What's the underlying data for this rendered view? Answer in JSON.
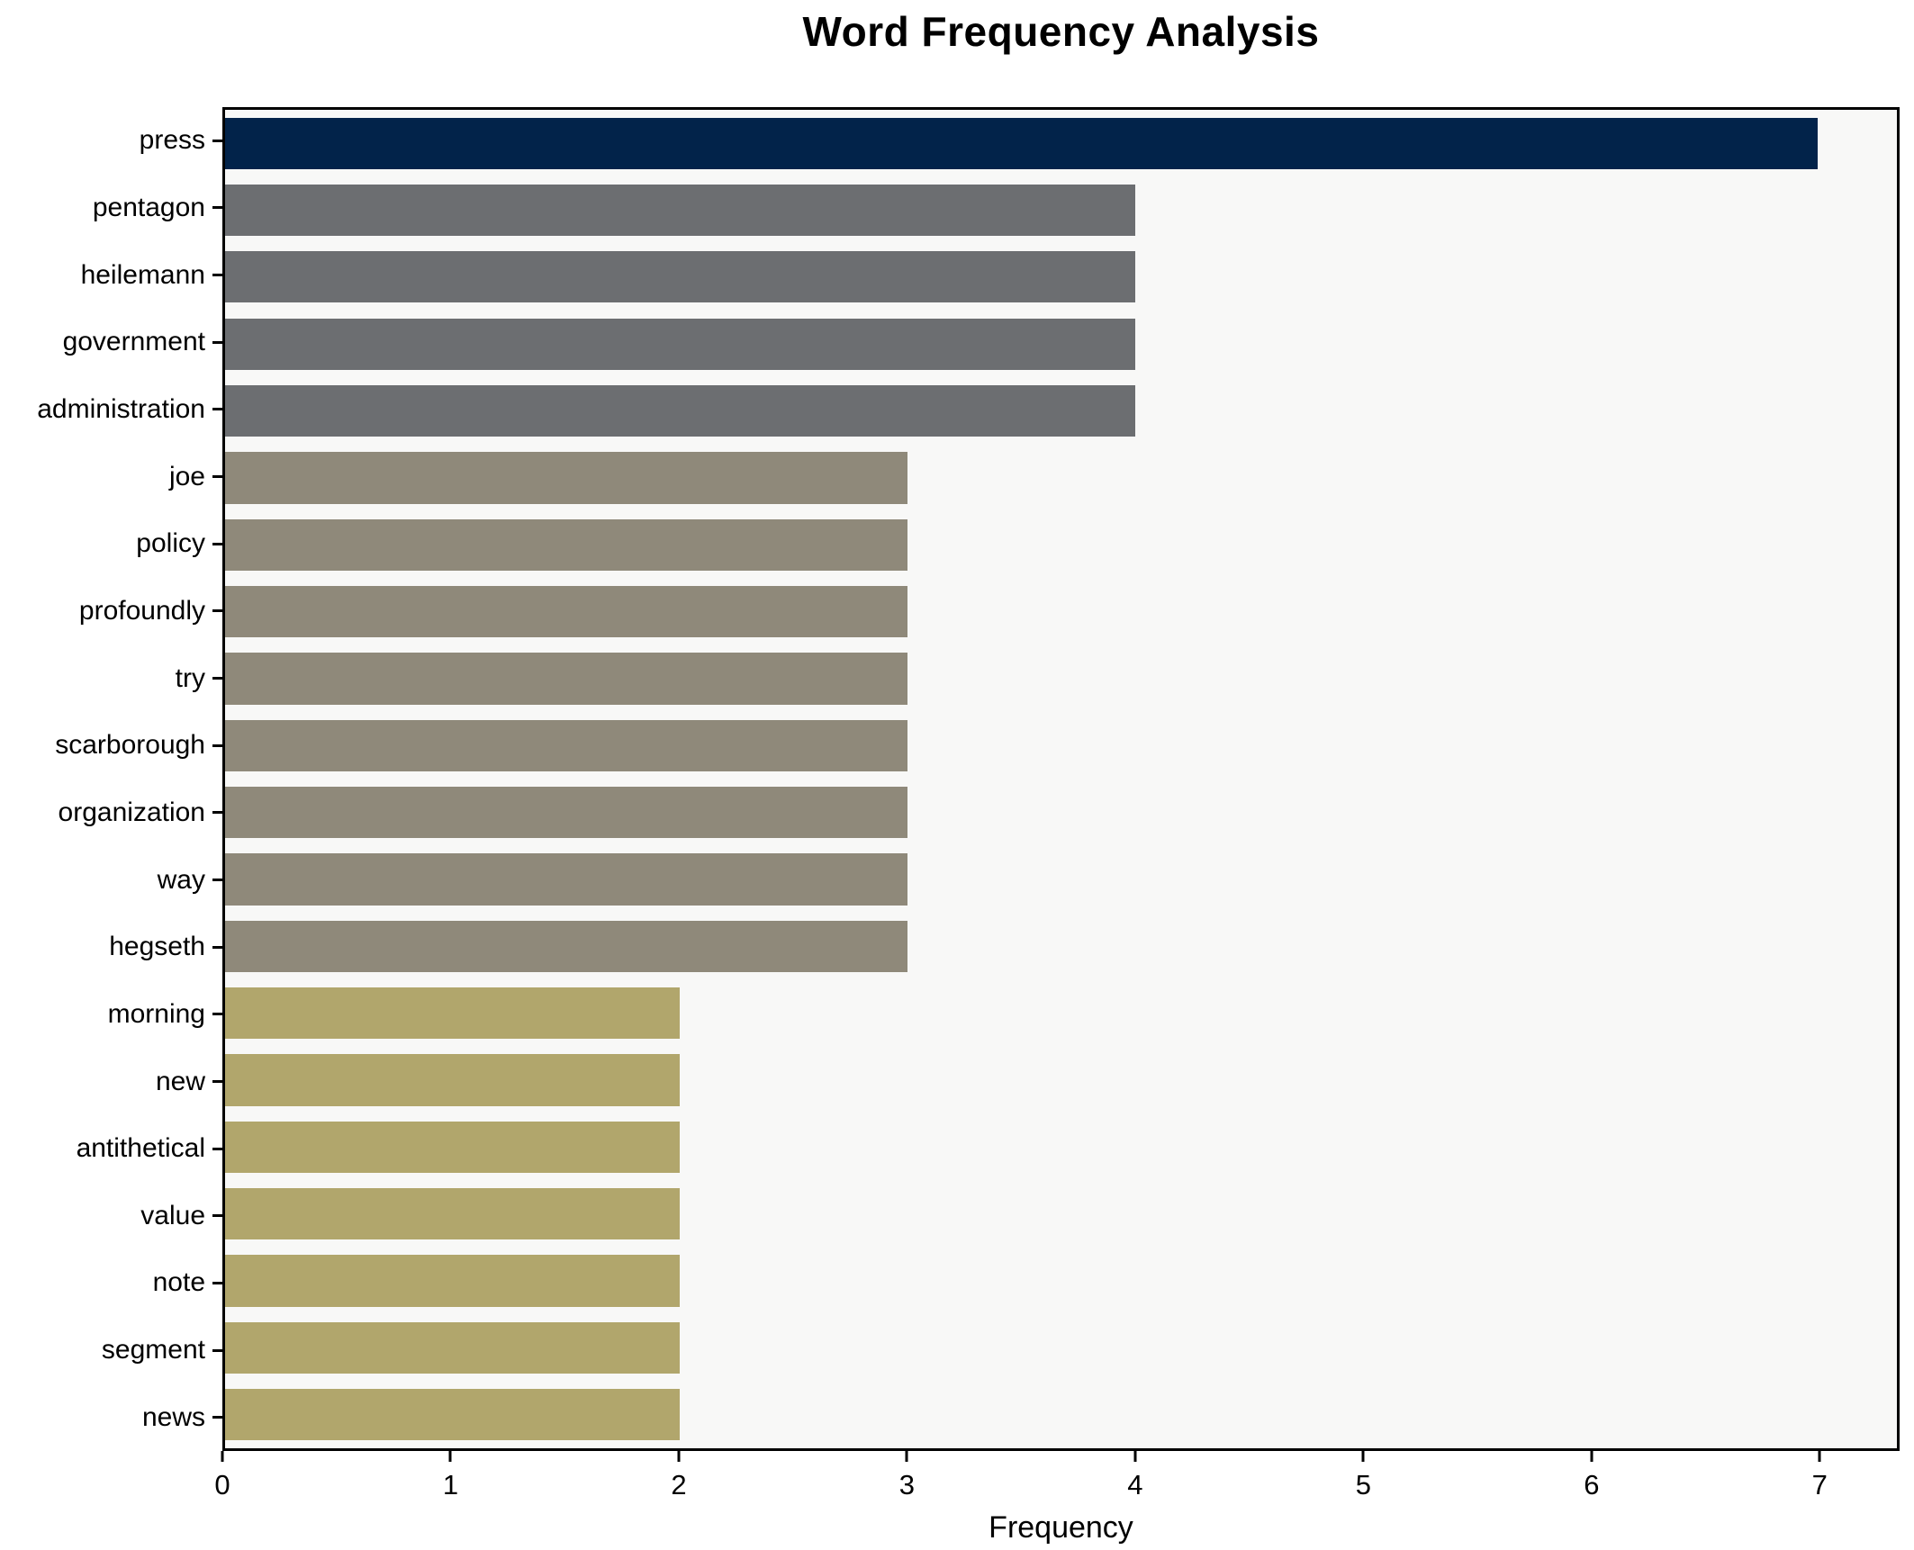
{
  "chart_data": {
    "type": "bar",
    "orientation": "horizontal",
    "title": "Word Frequency Analysis",
    "xlabel": "Frequency",
    "categories": [
      "press",
      "pentagon",
      "heilemann",
      "government",
      "administration",
      "joe",
      "policy",
      "profoundly",
      "try",
      "scarborough",
      "organization",
      "way",
      "hegseth",
      "morning",
      "new",
      "antithetical",
      "value",
      "note",
      "segment",
      "news"
    ],
    "values": [
      7,
      4,
      4,
      4,
      4,
      3,
      3,
      3,
      3,
      3,
      3,
      3,
      3,
      2,
      2,
      2,
      2,
      2,
      2,
      2
    ],
    "bar_colors": [
      "#02234a",
      "#6c6e71",
      "#6c6e71",
      "#6c6e71",
      "#6c6e71",
      "#8f897a",
      "#8f897a",
      "#8f897a",
      "#8f897a",
      "#8f897a",
      "#8f897a",
      "#8f897a",
      "#8f897a",
      "#b1a66c",
      "#b1a66c",
      "#b1a66c",
      "#b1a66c",
      "#b1a66c",
      "#b1a66c",
      "#b1a66c"
    ],
    "xticks": [
      0,
      1,
      2,
      3,
      4,
      5,
      6,
      7
    ],
    "xlim": [
      0,
      7.35
    ],
    "grid": false,
    "legend_position": "none",
    "colors": {
      "freq_7": "#02234a",
      "freq_4": "#6c6e71",
      "freq_3": "#8f897a",
      "freq_2": "#b1a66c",
      "plot_background": "#f8f8f7",
      "figure_background": "#ffffff",
      "axis": "#000000"
    }
  }
}
